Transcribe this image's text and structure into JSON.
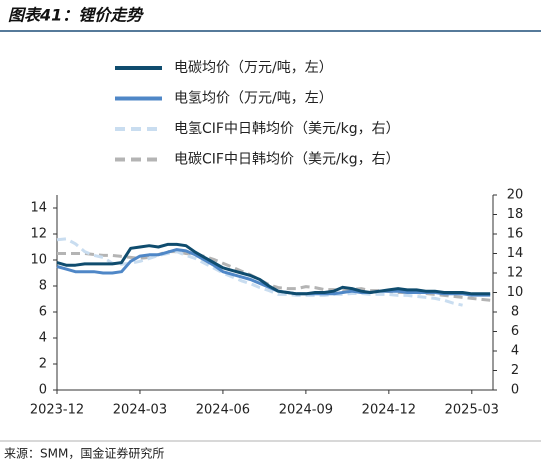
{
  "chart_data": {
    "type": "line",
    "title": "图表41：锂价走势",
    "source": "来源：SMM，国金证券研究所",
    "legend": "top",
    "categories": [
      "2023-12",
      null,
      null,
      null,
      null,
      null,
      null,
      null,
      null,
      "2024-03",
      null,
      null,
      null,
      null,
      null,
      null,
      null,
      null,
      "2024-06",
      null,
      null,
      null,
      null,
      null,
      null,
      null,
      null,
      "2024-09",
      null,
      null,
      null,
      null,
      null,
      null,
      null,
      null,
      "2024-12",
      null,
      null,
      null,
      null,
      null,
      null,
      null,
      null,
      "2025-03",
      null,
      null
    ],
    "ylim": [
      0,
      15
    ],
    "yticks": [
      0,
      2,
      4,
      6,
      8,
      10,
      12,
      14
    ],
    "y2lim": [
      0,
      20
    ],
    "y2ticks": [
      0,
      2,
      4,
      6,
      8,
      10,
      12,
      14,
      16,
      18,
      20
    ],
    "series": [
      {
        "name": "电碳均价（万元/吨，左）",
        "color": "#0f4c6e",
        "dashed": false,
        "axis": "y",
        "values": [
          9.8,
          9.6,
          9.6,
          9.7,
          9.7,
          9.7,
          9.7,
          9.8,
          10.9,
          11.0,
          11.1,
          11.0,
          11.2,
          11.2,
          11.1,
          10.6,
          10.2,
          9.8,
          9.4,
          9.2,
          9.0,
          8.8,
          8.5,
          8.0,
          7.6,
          7.5,
          7.4,
          7.4,
          7.5,
          7.5,
          7.6,
          7.9,
          7.8,
          7.6,
          7.5,
          7.6,
          7.7,
          7.8,
          7.7,
          7.7,
          7.6,
          7.6,
          7.5,
          7.5,
          7.5,
          7.4,
          7.4,
          7.4
        ]
      },
      {
        "name": "电氢均价（万元/吨，左）",
        "color": "#4f87c7",
        "dashed": false,
        "axis": "y",
        "values": [
          9.5,
          9.3,
          9.1,
          9.1,
          9.1,
          9.0,
          9.0,
          9.1,
          9.9,
          10.3,
          10.4,
          10.4,
          10.6,
          10.8,
          10.7,
          10.4,
          10.0,
          9.6,
          9.1,
          8.9,
          8.7,
          8.5,
          8.2,
          7.9,
          7.6,
          7.5,
          7.4,
          7.4,
          7.4,
          7.4,
          7.4,
          7.5,
          7.6,
          7.5,
          7.5,
          7.6,
          7.6,
          7.6,
          7.5,
          7.5,
          7.5,
          7.5,
          7.4,
          7.4,
          7.4,
          7.3,
          7.3,
          7.3
        ]
      },
      {
        "name": "电氢CIF中日韩均价（美元/kg，右）",
        "color": "#c9ddf0",
        "dashed": true,
        "axis": "y2",
        "values": [
          15.4,
          15.5,
          15.0,
          14.2,
          13.8,
          13.6,
          13.0,
          12.9,
          13.0,
          13.2,
          13.5,
          13.8,
          14.0,
          14.2,
          13.8,
          13.5,
          13.0,
          12.5,
          12.0,
          11.6,
          11.2,
          10.9,
          10.5,
          10.2,
          9.8,
          9.8,
          9.7,
          9.7,
          9.7,
          9.7,
          9.8,
          9.8,
          9.9,
          9.9,
          9.8,
          9.8,
          9.8,
          9.7,
          9.7,
          9.6,
          9.5,
          9.4,
          9.2,
          8.9,
          8.7,
          null,
          null,
          null
        ]
      },
      {
        "name": "电碳CIF中日韩均价（美元/kg，右）",
        "color": "#b4b4b4",
        "dashed": true,
        "axis": "y2",
        "values": [
          14.0,
          14.0,
          14.0,
          14.0,
          13.9,
          13.8,
          13.8,
          13.7,
          13.6,
          13.5,
          13.6,
          13.9,
          14.2,
          14.2,
          14.0,
          13.9,
          13.7,
          13.4,
          13.0,
          12.6,
          12.2,
          11.8,
          11.3,
          10.8,
          10.5,
          10.4,
          10.4,
          10.6,
          10.5,
          10.3,
          10.3,
          10.2,
          10.3,
          10.4,
          10.2,
          10.2,
          10.1,
          10.0,
          10.0,
          10.0,
          9.9,
          9.8,
          9.7,
          9.6,
          9.5,
          9.4,
          9.3,
          9.2
        ]
      }
    ]
  }
}
